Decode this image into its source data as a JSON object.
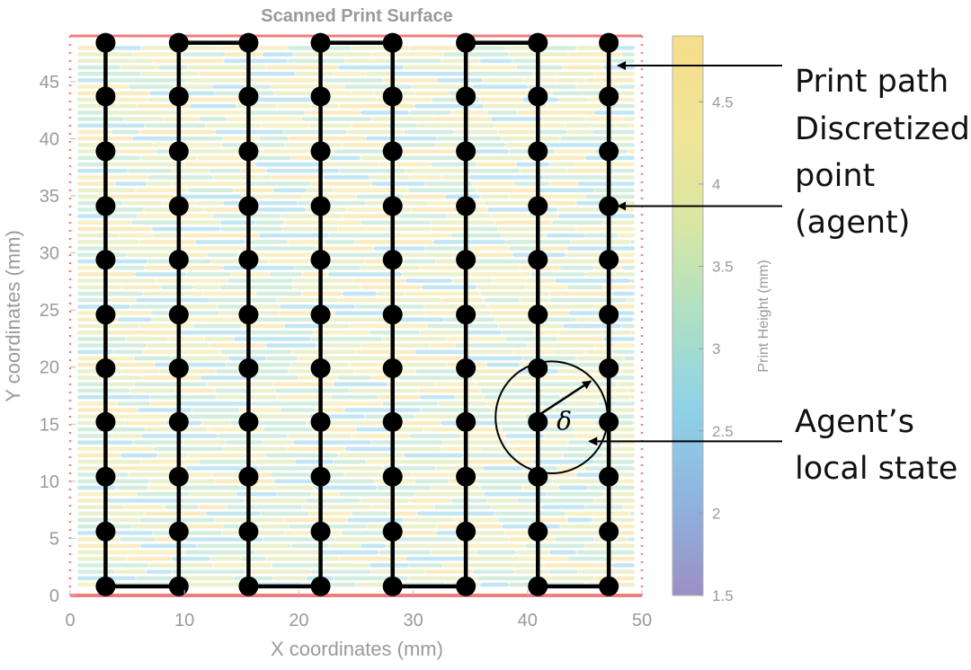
{
  "chart_data": {
    "type": "scatter",
    "title": "Scanned Print Surface",
    "xlabel": "X coordinates (mm)",
    "ylabel": "Y coordinates (mm)",
    "xlim": [
      0,
      50
    ],
    "ylim": [
      0,
      49
    ],
    "x_ticks": [
      0,
      10,
      20,
      30,
      40,
      50
    ],
    "y_ticks": [
      0,
      5,
      10,
      15,
      20,
      25,
      30,
      35,
      40,
      45
    ],
    "colorbar": {
      "label": "Print Height (mm)",
      "range": [
        1.5,
        4.9
      ],
      "ticks": [
        1.5,
        2,
        2.5,
        3,
        3.5,
        4,
        4.5
      ]
    },
    "path_columns_x": [
      3.1,
      9.5,
      15.6,
      21.9,
      28.2,
      34.6,
      40.9,
      47.1
    ],
    "point_rows_y": [
      0.8,
      5.6,
      10.4,
      15.2,
      19.9,
      24.6,
      29.4,
      34.1,
      38.9,
      43.7,
      48.4
    ],
    "path_connections": [
      {
        "from": [
          3.1,
          0.8
        ],
        "to": [
          9.5,
          0.8
        ]
      },
      {
        "from": [
          9.5,
          48.4
        ],
        "to": [
          15.6,
          48.4
        ]
      },
      {
        "from": [
          15.6,
          0.8
        ],
        "to": [
          21.9,
          0.8
        ]
      },
      {
        "from": [
          21.9,
          48.4
        ],
        "to": [
          28.2,
          48.4
        ]
      },
      {
        "from": [
          28.2,
          0.8
        ],
        "to": [
          34.6,
          0.8
        ]
      },
      {
        "from": [
          34.6,
          48.4
        ],
        "to": [
          40.9,
          48.4
        ]
      },
      {
        "from": [
          40.9,
          0.8
        ],
        "to": [
          47.1,
          0.8
        ]
      }
    ],
    "local_state": {
      "center": [
        42.1,
        15.6
      ],
      "radius_mm": 4.9,
      "symbol": "δ"
    },
    "annotations": [
      {
        "lines": [
          "Print path"
        ],
        "target": [
          47.1,
          46.4
        ]
      },
      {
        "lines": [
          "Discretized",
          "point",
          "(agent)"
        ],
        "target": [
          47.1,
          34.1
        ]
      },
      {
        "lines": [
          "Agent’s",
          "local state"
        ],
        "target": [
          44.6,
          13.5
        ]
      }
    ]
  },
  "colors": {
    "path": "#000000",
    "border": "#f07d7d",
    "axis_text": "#9a9a9a",
    "colormap": [
      "#9c8fc6",
      "#8fb3de",
      "#8fd2e8",
      "#aee0c4",
      "#d9e6a3",
      "#f2e598",
      "#f5dd8c"
    ]
  }
}
